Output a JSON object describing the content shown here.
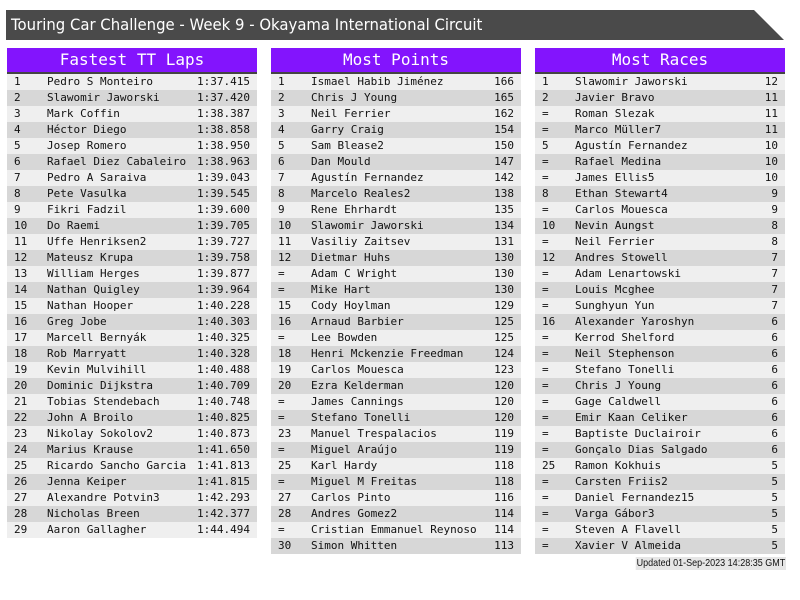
{
  "title": "Touring Car Challenge - Week 9 - Okayama International Circuit",
  "colors": {
    "header": "#8314fd",
    "titlebar": "#4a4a4a",
    "row_light": "#efefef",
    "row_dark": "#d7d7d7"
  },
  "tables": [
    {
      "title": "Fastest TT Laps",
      "rows": [
        [
          "1",
          "Pedro S Monteiro",
          "1:37.415"
        ],
        [
          "2",
          "Slawomir Jaworski",
          "1:37.420"
        ],
        [
          "3",
          "Mark Coffin",
          "1:38.387"
        ],
        [
          "4",
          "Héctor Diego",
          "1:38.858"
        ],
        [
          "5",
          "Josep Romero",
          "1:38.950"
        ],
        [
          "6",
          "Rafael Diez Cabaleiro",
          "1:38.963"
        ],
        [
          "7",
          "Pedro A Saraiva",
          "1:39.043"
        ],
        [
          "8",
          "Pete Vasulka",
          "1:39.545"
        ],
        [
          "9",
          "Fikri Fadzil",
          "1:39.600"
        ],
        [
          "10",
          "Do Raemi",
          "1:39.705"
        ],
        [
          "11",
          "Uffe Henriksen2",
          "1:39.727"
        ],
        [
          "12",
          "Mateusz Krupa",
          "1:39.758"
        ],
        [
          "13",
          "William Herges",
          "1:39.877"
        ],
        [
          "14",
          "Nathan Quigley",
          "1:39.964"
        ],
        [
          "15",
          "Nathan Hooper",
          "1:40.228"
        ],
        [
          "16",
          "Greg Jobe",
          "1:40.303"
        ],
        [
          "17",
          "Marcell Bernyák",
          "1:40.325"
        ],
        [
          "18",
          "Rob Marryatt",
          "1:40.328"
        ],
        [
          "19",
          "Kevin Mulvihill",
          "1:40.488"
        ],
        [
          "20",
          "Dominic Dijkstra",
          "1:40.709"
        ],
        [
          "21",
          "Tobias Stendebach",
          "1:40.748"
        ],
        [
          "22",
          "John A Broilo",
          "1:40.825"
        ],
        [
          "23",
          "Nikolay Sokolov2",
          "1:40.873"
        ],
        [
          "24",
          "Marius Krause",
          "1:41.650"
        ],
        [
          "25",
          "Ricardo Sancho Garcia",
          "1:41.813"
        ],
        [
          "26",
          "Jenna Keiper",
          "1:41.815"
        ],
        [
          "27",
          "Alexandre Potvin3",
          "1:42.293"
        ],
        [
          "28",
          "Nicholas Breen",
          "1:42.377"
        ],
        [
          "29",
          "Aaron Gallagher",
          "1:44.494"
        ]
      ]
    },
    {
      "title": "Most Points",
      "rows": [
        [
          "1",
          "Ismael Habib Jiménez",
          "166"
        ],
        [
          "2",
          "Chris J Young",
          "165"
        ],
        [
          "3",
          "Neil Ferrier",
          "162"
        ],
        [
          "4",
          "Garry Craig",
          "154"
        ],
        [
          "5",
          "Sam Blease2",
          "150"
        ],
        [
          "6",
          "Dan Mould",
          "147"
        ],
        [
          "7",
          "Agustín Fernandez",
          "142"
        ],
        [
          "8",
          "Marcelo Reales2",
          "138"
        ],
        [
          "9",
          "Rene Ehrhardt",
          "135"
        ],
        [
          "10",
          "Slawomir Jaworski",
          "134"
        ],
        [
          "11",
          "Vasiliy Zaitsev",
          "131"
        ],
        [
          "12",
          "Dietmar Huhs",
          "130"
        ],
        [
          "=",
          "Adam C Wright",
          "130"
        ],
        [
          "=",
          "Mike Hart",
          "130"
        ],
        [
          "15",
          "Cody Hoylman",
          "129"
        ],
        [
          "16",
          "Arnaud Barbier",
          "125"
        ],
        [
          "=",
          "Lee Bowden",
          "125"
        ],
        [
          "18",
          "Henri Mckenzie Freedman",
          "124"
        ],
        [
          "19",
          "Carlos Mouesca",
          "123"
        ],
        [
          "20",
          "Ezra Kelderman",
          "120"
        ],
        [
          "=",
          "James Cannings",
          "120"
        ],
        [
          "=",
          "Stefano Tonelli",
          "120"
        ],
        [
          "23",
          "Manuel Trespalacios",
          "119"
        ],
        [
          "=",
          "Miguel Araújo",
          "119"
        ],
        [
          "25",
          "Karl Hardy",
          "118"
        ],
        [
          "=",
          "Miguel M Freitas",
          "118"
        ],
        [
          "27",
          "Carlos Pinto",
          "116"
        ],
        [
          "28",
          "Andres Gomez2",
          "114"
        ],
        [
          "=",
          "Cristian Emmanuel Reynoso",
          "114"
        ],
        [
          "30",
          "Simon Whitten",
          "113"
        ]
      ]
    },
    {
      "title": "Most Races",
      "rows": [
        [
          "1",
          "Slawomir Jaworski",
          "12"
        ],
        [
          "2",
          "Javier Bravo",
          "11"
        ],
        [
          "=",
          "Roman Slezak",
          "11"
        ],
        [
          "=",
          "Marco Müller7",
          "11"
        ],
        [
          "5",
          "Agustín Fernandez",
          "10"
        ],
        [
          "=",
          "Rafael Medina",
          "10"
        ],
        [
          "=",
          "James Ellis5",
          "10"
        ],
        [
          "8",
          "Ethan Stewart4",
          "9"
        ],
        [
          "=",
          "Carlos Mouesca",
          "9"
        ],
        [
          "10",
          "Nevin Aungst",
          "8"
        ],
        [
          "=",
          "Neil Ferrier",
          "8"
        ],
        [
          "12",
          "Andres Stowell",
          "7"
        ],
        [
          "=",
          "Adam Lenartowski",
          "7"
        ],
        [
          "=",
          "Louis Mcghee",
          "7"
        ],
        [
          "=",
          "Sunghyun Yun",
          "7"
        ],
        [
          "16",
          "Alexander Yaroshyn",
          "6"
        ],
        [
          "=",
          "Kerrod Shelford",
          "6"
        ],
        [
          "=",
          "Neil Stephenson",
          "6"
        ],
        [
          "=",
          "Stefano Tonelli",
          "6"
        ],
        [
          "=",
          "Chris J Young",
          "6"
        ],
        [
          "=",
          "Gage Caldwell",
          "6"
        ],
        [
          "=",
          "Emir Kaan Celiker",
          "6"
        ],
        [
          "=",
          "Baptiste Duclairoir",
          "6"
        ],
        [
          "=",
          "Gonçalo Dias Salgado",
          "6"
        ],
        [
          "25",
          "Ramon Kokhuis",
          "5"
        ],
        [
          "=",
          "Carsten Friis2",
          "5"
        ],
        [
          "=",
          "Daniel Fernandez15",
          "5"
        ],
        [
          "=",
          "Varga Gábor3",
          "5"
        ],
        [
          "=",
          "Steven A Flavell",
          "5"
        ],
        [
          "=",
          "Xavier V Almeida",
          "5"
        ]
      ]
    }
  ],
  "footer": "Updated 01-Sep-2023 14:28:35 GMT"
}
